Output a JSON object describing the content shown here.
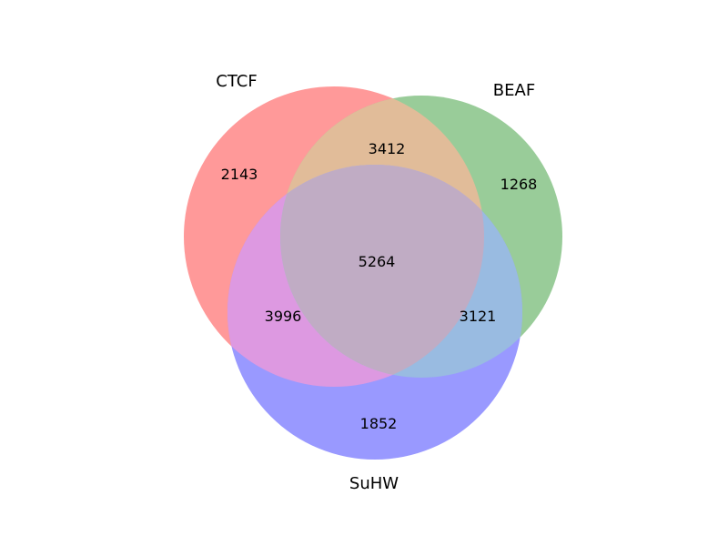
{
  "diagram": {
    "type": "venn3",
    "sets": [
      {
        "id": "ctcf",
        "label": "CTCF",
        "color": "#ff9999"
      },
      {
        "id": "beaf",
        "label": "BEAF",
        "color": "#99cc99"
      },
      {
        "id": "suhw",
        "label": "SuHW",
        "color": "#9999ff"
      }
    ],
    "regions": {
      "ctcf_only": "2143",
      "beaf_only": "1268",
      "suhw_only": "1852",
      "ctcf_beaf": "3412",
      "ctcf_suhw": "3996",
      "beaf_suhw": "3121",
      "all_three": "5264"
    },
    "region_colors": {
      "ctcf_beaf": "#e1bc99",
      "ctcf_suhw": "#dd99e1",
      "beaf_suhw": "#99bbe1",
      "all_three": "#c0acc4"
    }
  }
}
